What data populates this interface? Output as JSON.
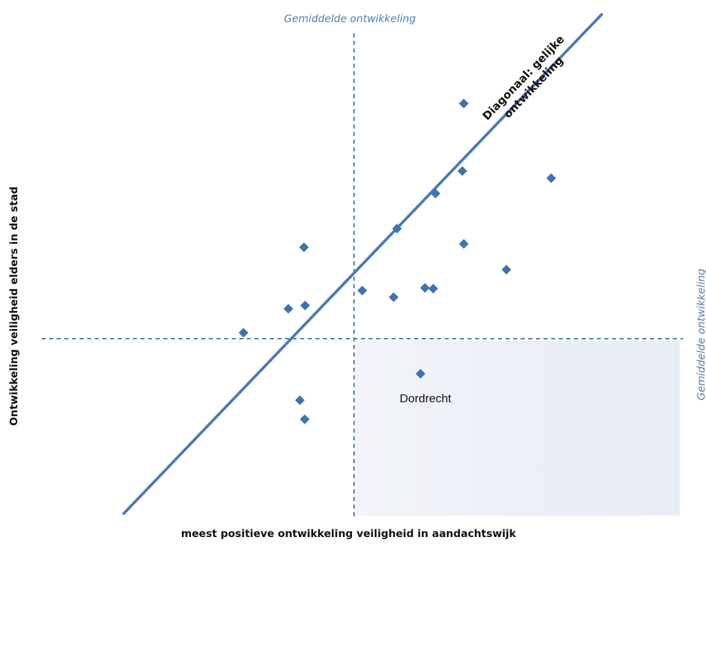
{
  "chart_data": {
    "type": "scatter",
    "title": "",
    "xlabel": "meest positieve ontwikkeling veiligheid in aandachtswijk",
    "ylabel": "Ontwikkeling veiligheid elders in de stad",
    "xlim": [
      -1,
      1
    ],
    "ylim": [
      -1,
      1
    ],
    "grid": false,
    "legend": "none",
    "reference_lines": {
      "vertical_mean": {
        "x": 0,
        "label": "Gemiddelde ontwikkeling"
      },
      "horizontal_mean": {
        "y": 0,
        "label": "Gemiddelde ontwikkeling"
      },
      "diagonal": {
        "slope": 1,
        "intercept": 0,
        "label_line1": "Diagonaal: gelijke",
        "label_line2": "ontwikkeling"
      }
    },
    "highlighted_quadrant": "bottom-right",
    "annotations": [
      {
        "text": "Dordrecht",
        "x": 0.14,
        "y": -0.23
      }
    ],
    "series": [
      {
        "marker": "diamond",
        "color": "#3f72af",
        "points": [
          {
            "x": -0.296,
            "y": 0.016
          },
          {
            "x": -0.176,
            "y": 0.08
          },
          {
            "x": -0.131,
            "y": 0.089
          },
          {
            "x": -0.134,
            "y": 0.245
          },
          {
            "x": 0.022,
            "y": 0.129
          },
          {
            "x": 0.106,
            "y": 0.111
          },
          {
            "x": 0.115,
            "y": 0.295
          },
          {
            "x": 0.19,
            "y": 0.136
          },
          {
            "x": 0.212,
            "y": 0.134
          },
          {
            "x": 0.218,
            "y": 0.389
          },
          {
            "x": 0.29,
            "y": 0.449
          },
          {
            "x": 0.294,
            "y": 0.63
          },
          {
            "x": 0.294,
            "y": 0.254
          },
          {
            "x": 0.408,
            "y": 0.185
          },
          {
            "x": 0.528,
            "y": 0.43
          },
          {
            "x": 0.178,
            "y": -0.094
          },
          {
            "x": -0.145,
            "y": -0.165
          },
          {
            "x": -0.132,
            "y": -0.216
          }
        ]
      }
    ]
  }
}
